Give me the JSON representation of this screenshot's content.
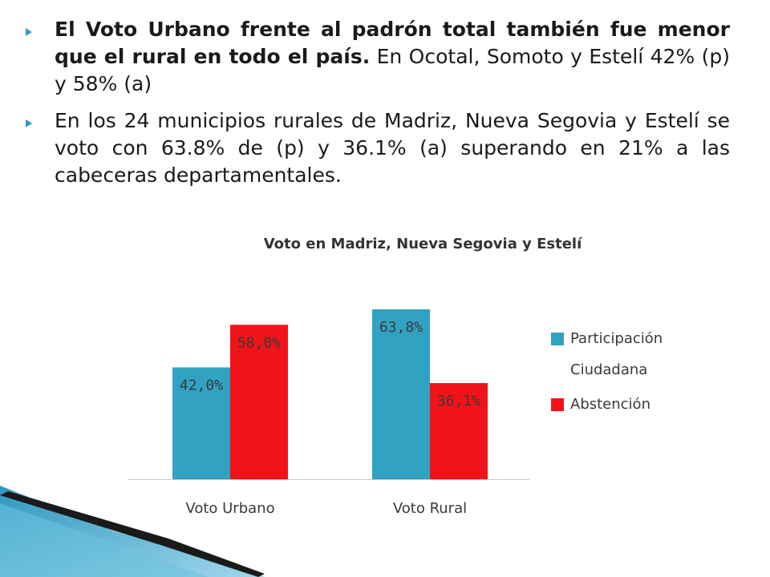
{
  "bullets": [
    {
      "bold_text": "El Voto Urbano frente al padrón total también fue menor que el rural en todo el país.",
      "text": " En Ocotal, Somoto y Estelí 42% (p) y 58% (a)"
    },
    {
      "bold_text": "",
      "text": "En los 24 municipios rurales de Madriz, Nueva Segovia y Estelí se voto con 63.8% de (p) y 36.1% (a) superando en 21% a las cabeceras departamentales."
    }
  ],
  "colors": {
    "participacion": "#31a2c2",
    "abstencion": "#f21318",
    "bullet": "#2e9cc4"
  },
  "chart_data": {
    "type": "bar",
    "title": "Voto en Madriz, Nueva Segovia y Estelí",
    "categories": [
      "Voto Urbano",
      "Voto Rural"
    ],
    "series": [
      {
        "name": "Participación Ciudadana",
        "values": [
          42.0,
          63.8
        ],
        "labels": [
          "42,0%",
          "63,8%"
        ],
        "color": "#31a2c2"
      },
      {
        "name": "Abstención",
        "values": [
          58.0,
          36.1
        ],
        "labels": [
          "58,0%",
          "36,1%"
        ],
        "color": "#f21318"
      }
    ],
    "ylim": [
      0,
      70
    ],
    "grid": false,
    "legend": "right"
  }
}
